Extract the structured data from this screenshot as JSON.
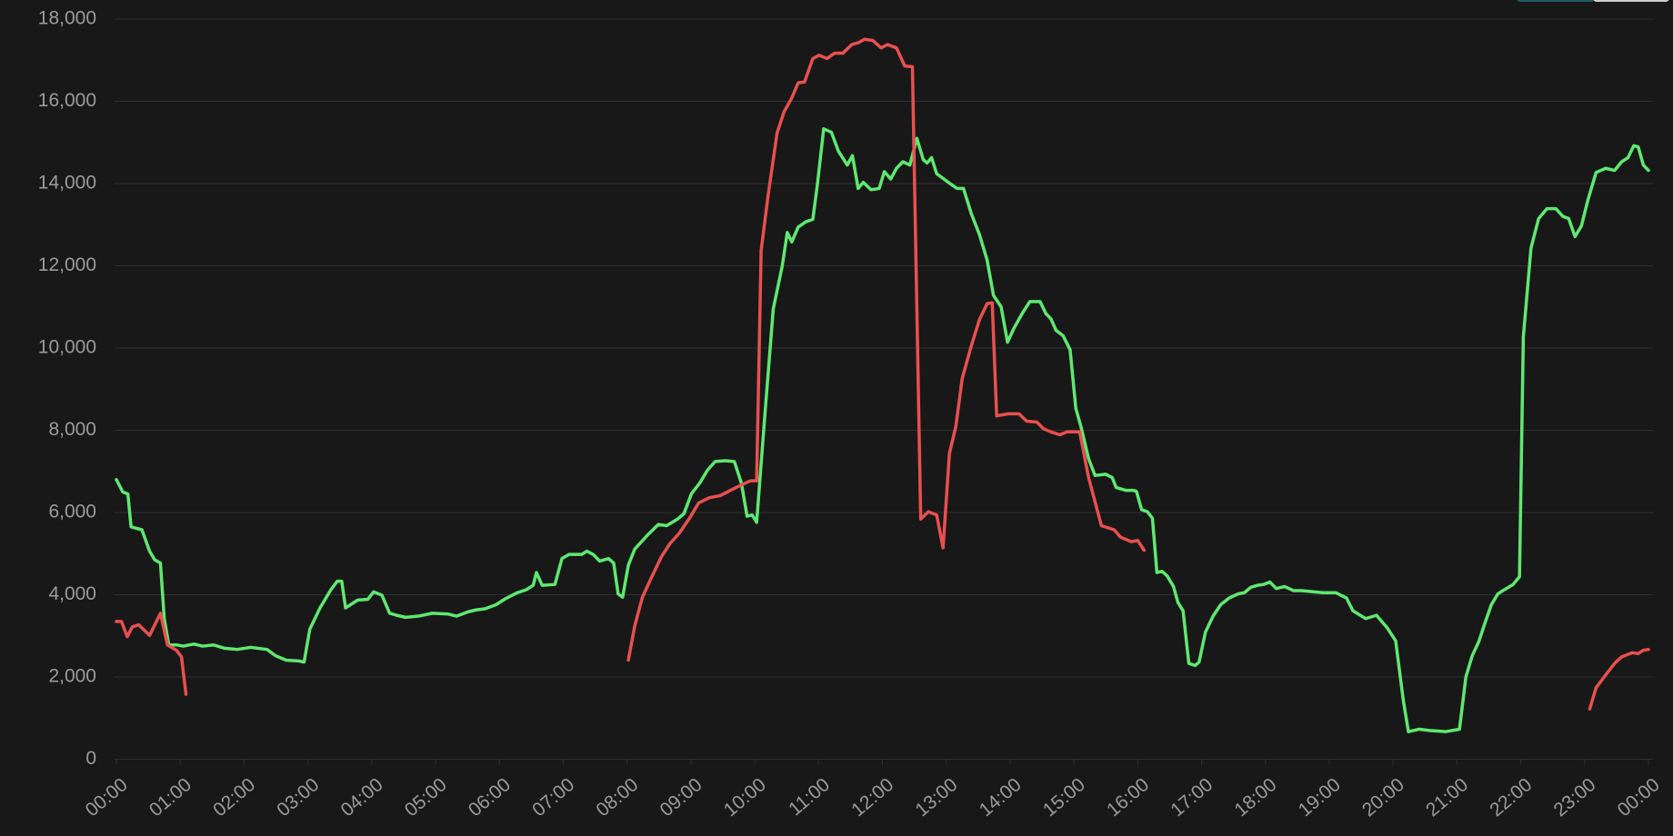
{
  "chart_data": {
    "type": "line",
    "xlim": [
      0,
      24
    ],
    "xticks": [
      {
        "value": 0,
        "label": "00:00"
      },
      {
        "value": 1,
        "label": "01:00"
      },
      {
        "value": 2,
        "label": "02:00"
      },
      {
        "value": 3,
        "label": "03:00"
      },
      {
        "value": 4,
        "label": "04:00"
      },
      {
        "value": 5,
        "label": "05:00"
      },
      {
        "value": 6,
        "label": "06:00"
      },
      {
        "value": 7,
        "label": "07:00"
      },
      {
        "value": 8,
        "label": "08:00"
      },
      {
        "value": 9,
        "label": "09:00"
      },
      {
        "value": 10,
        "label": "10:00"
      },
      {
        "value": 11,
        "label": "11:00"
      },
      {
        "value": 12,
        "label": "12:00"
      },
      {
        "value": 13,
        "label": "13:00"
      },
      {
        "value": 14,
        "label": "14:00"
      },
      {
        "value": 15,
        "label": "15:00"
      },
      {
        "value": 16,
        "label": "16:00"
      },
      {
        "value": 17,
        "label": "17:00"
      },
      {
        "value": 18,
        "label": "18:00"
      },
      {
        "value": 19,
        "label": "19:00"
      },
      {
        "value": 20,
        "label": "20:00"
      },
      {
        "value": 21,
        "label": "21:00"
      },
      {
        "value": 22,
        "label": "22:00"
      },
      {
        "value": 23,
        "label": "23:00"
      },
      {
        "value": 24,
        "label": "00:00"
      }
    ],
    "ylim": [
      0,
      18000
    ],
    "yticks": [
      0,
      {
        "value": 2000,
        "label": "2,000"
      },
      {
        "value": 4000,
        "label": "4,000"
      },
      {
        "value": 6000,
        "label": "6,000"
      },
      {
        "value": 8000,
        "label": "8,000"
      },
      {
        "value": 10000,
        "label": "10,000"
      },
      {
        "value": 12000,
        "label": "12,000"
      },
      {
        "value": 14000,
        "label": "14,000"
      },
      {
        "value": 16000,
        "label": "16,000"
      },
      {
        "value": 18000,
        "label": "18,000"
      }
    ],
    "grid": true,
    "series": [
      {
        "color": "#5fe870",
        "x": [
          0,
          0.1,
          0.18,
          0.23,
          0.4,
          0.52,
          0.6,
          0.69,
          0.75,
          0.82,
          0.94,
          1.05,
          1.14,
          1.22,
          1.35,
          1.52,
          1.69,
          1.89,
          2.1,
          2.36,
          2.49,
          2.66,
          2.86,
          2.94,
          3.03,
          3.19,
          3.36,
          3.46,
          3.53,
          3.59,
          3.78,
          3.94,
          4.03,
          4.16,
          4.28,
          4.39,
          4.53,
          4.73,
          4.95,
          5.2,
          5.33,
          5.5,
          5.63,
          5.78,
          5.95,
          6.08,
          6.28,
          6.42,
          6.53,
          6.58,
          6.67,
          6.87,
          6.98,
          7.09,
          7.29,
          7.37,
          7.47,
          7.57,
          7.71,
          7.79,
          7.86,
          7.93,
          8.02,
          8.12,
          8.32,
          8.49,
          8.62,
          8.79,
          8.89,
          9.01,
          9.14,
          9.26,
          9.38,
          9.54,
          9.68,
          9.79,
          9.88,
          9.96,
          10.03,
          10.16,
          10.29,
          10.43,
          10.51,
          10.58,
          10.68,
          10.8,
          10.91,
          10.98,
          11.08,
          11.2,
          11.31,
          11.45,
          11.53,
          11.62,
          11.7,
          11.82,
          11.95,
          12.03,
          12.13,
          12.22,
          12.32,
          12.43,
          12.54,
          12.64,
          12.7,
          12.77,
          12.85,
          13.05,
          13.17,
          13.27,
          13.39,
          13.52,
          13.64,
          13.74,
          13.86,
          13.96,
          14.06,
          14.19,
          14.31,
          14.47,
          14.56,
          14.64,
          14.72,
          14.83,
          14.94,
          15.03,
          15.11,
          15.23,
          15.33,
          15.5,
          15.6,
          15.66,
          15.81,
          15.93,
          15.98,
          16.06,
          16.15,
          16.23,
          16.3,
          16.38,
          16.46,
          16.56,
          16.63,
          16.71,
          16.8,
          16.9,
          16.96,
          17.06,
          17.18,
          17.3,
          17.43,
          17.57,
          17.67,
          17.77,
          17.88,
          17.97,
          18.07,
          18.17,
          18.3,
          18.44,
          18.57,
          18.77,
          18.9,
          19.1,
          19.27,
          19.37,
          19.57,
          19.74,
          19.91,
          20.04,
          20.16,
          20.24,
          20.41,
          20.57,
          20.82,
          21.04,
          21.14,
          21.24,
          21.34,
          21.44,
          21.54,
          21.64,
          21.74,
          21.88,
          21.98,
          22.04,
          22.16,
          22.28,
          22.41,
          22.55,
          22.66,
          22.75,
          22.85,
          22.95,
          23.05,
          23.18,
          23.33,
          23.47,
          23.58,
          23.68,
          23.77,
          23.84,
          23.92,
          24
        ],
        "values": [
          6800,
          6500,
          6450,
          5650,
          5580,
          5060,
          4850,
          4770,
          3420,
          2780,
          2780,
          2750,
          2780,
          2800,
          2750,
          2780,
          2700,
          2670,
          2720,
          2670,
          2520,
          2410,
          2390,
          2360,
          3160,
          3680,
          4120,
          4330,
          4330,
          3680,
          3870,
          3890,
          4070,
          3990,
          3550,
          3500,
          3450,
          3480,
          3550,
          3530,
          3480,
          3580,
          3630,
          3660,
          3760,
          3890,
          4050,
          4120,
          4230,
          4540,
          4230,
          4250,
          4880,
          4980,
          4980,
          5060,
          4980,
          4820,
          4880,
          4770,
          4020,
          3940,
          4720,
          5110,
          5450,
          5710,
          5680,
          5840,
          5970,
          6460,
          6720,
          7030,
          7240,
          7260,
          7240,
          6720,
          5910,
          5940,
          5760,
          8400,
          10950,
          11990,
          12810,
          12580,
          12940,
          13070,
          13130,
          13960,
          15330,
          15250,
          14790,
          14450,
          14680,
          13880,
          14030,
          13850,
          13880,
          14290,
          14110,
          14370,
          14530,
          14450,
          15100,
          14580,
          14500,
          14630,
          14240,
          14010,
          13880,
          13880,
          13280,
          12760,
          12140,
          11280,
          11000,
          10140,
          10480,
          10840,
          11130,
          11130,
          10840,
          10710,
          10430,
          10300,
          9960,
          8530,
          8090,
          7310,
          6900,
          6930,
          6850,
          6610,
          6540,
          6540,
          6510,
          6070,
          6020,
          5860,
          4540,
          4570,
          4460,
          4200,
          3810,
          3610,
          2330,
          2280,
          2360,
          3090,
          3480,
          3760,
          3920,
          4020,
          4050,
          4180,
          4230,
          4250,
          4310,
          4150,
          4200,
          4100,
          4100,
          4070,
          4050,
          4050,
          3920,
          3610,
          3420,
          3500,
          3190,
          2880,
          1430,
          670,
          730,
          700,
          670,
          730,
          2000,
          2520,
          2850,
          3320,
          3760,
          4020,
          4120,
          4250,
          4440,
          10270,
          12430,
          13150,
          13390,
          13390,
          13200,
          13150,
          12710,
          12970,
          13590,
          14270,
          14370,
          14320,
          14530,
          14630,
          14920,
          14890,
          14450,
          14320
        ]
      },
      {
        "color": "#e8504f",
        "x": [
          0,
          0.08,
          0.17,
          0.25,
          0.35,
          0.52,
          0.69,
          0.8,
          0.94,
          1.02,
          1.09,
          null,
          8.02,
          8.12,
          8.24,
          8.37,
          8.54,
          8.67,
          8.82,
          8.99,
          9.12,
          9.29,
          9.46,
          9.62,
          9.79,
          9.93,
          10.03,
          10.1,
          10.21,
          10.35,
          10.46,
          10.58,
          10.68,
          10.78,
          10.91,
          11.01,
          11.13,
          11.25,
          11.38,
          11.52,
          11.63,
          11.72,
          11.85,
          11.98,
          12.08,
          12.22,
          12.35,
          12.47,
          12.6,
          12.72,
          12.85,
          12.95,
          13.05,
          13.15,
          13.25,
          13.39,
          13.52,
          13.64,
          13.72,
          13.79,
          13.97,
          14.14,
          14.26,
          14.42,
          14.52,
          14.64,
          14.78,
          14.89,
          15.09,
          15.23,
          15.43,
          15.63,
          15.73,
          15.9,
          16.0,
          16.1,
          null,
          23.08,
          23.18,
          23.33,
          23.47,
          23.58,
          23.75,
          23.84,
          23.92,
          24
        ],
        "values": [
          3350,
          3350,
          2980,
          3220,
          3270,
          3010,
          3550,
          2780,
          2650,
          2490,
          1580,
          null,
          2410,
          3240,
          3940,
          4380,
          4930,
          5240,
          5500,
          5890,
          6230,
          6360,
          6410,
          6540,
          6670,
          6770,
          6770,
          12370,
          13720,
          15230,
          15750,
          16080,
          16450,
          16470,
          17040,
          17120,
          17040,
          17170,
          17170,
          17380,
          17430,
          17510,
          17480,
          17300,
          17380,
          17300,
          16860,
          16840,
          5840,
          6020,
          5940,
          5140,
          7440,
          8090,
          9260,
          10040,
          10690,
          11080,
          11100,
          8350,
          8400,
          8400,
          8220,
          8200,
          8040,
          7960,
          7890,
          7960,
          7960,
          6850,
          5680,
          5580,
          5400,
          5290,
          5320,
          5080,
          null,
          1220,
          1740,
          2050,
          2330,
          2490,
          2590,
          2570,
          2650,
          2670
        ]
      }
    ]
  }
}
